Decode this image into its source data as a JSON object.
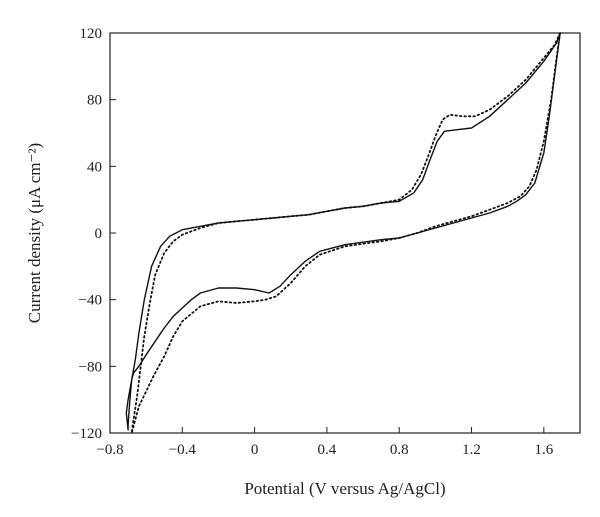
{
  "chart_data": {
    "type": "line",
    "title": "",
    "xlabel": "Potential (V versus Ag/AgCl)",
    "ylabel": "Current density (μA cm⁻²)",
    "xlim": [
      -0.8,
      1.8
    ],
    "ylim": [
      -120,
      120
    ],
    "x_ticks": [
      "−0.8",
      "−0.4",
      "0",
      "0.4",
      "0.8",
      "1.2",
      "1.6"
    ],
    "x_tick_values": [
      -0.8,
      -0.4,
      0,
      0.4,
      0.8,
      1.2,
      1.6
    ],
    "y_ticks": [
      "−120",
      "−80",
      "−40",
      "0",
      "40",
      "80",
      "120"
    ],
    "y_tick_values": [
      -120,
      -80,
      -40,
      0,
      40,
      80,
      120
    ],
    "grid": false,
    "legend": "none",
    "series": [
      {
        "style": "solid",
        "color": "#111111",
        "points": [
          [
            1.69,
            120
          ],
          [
            1.67,
            114
          ],
          [
            1.6,
            103
          ],
          [
            1.5,
            90
          ],
          [
            1.4,
            80
          ],
          [
            1.3,
            70
          ],
          [
            1.2,
            63
          ],
          [
            1.12,
            62
          ],
          [
            1.05,
            61
          ],
          [
            1.01,
            55
          ],
          [
            0.97,
            44
          ],
          [
            0.93,
            32
          ],
          [
            0.88,
            24
          ],
          [
            0.8,
            19
          ],
          [
            0.7,
            18
          ],
          [
            0.6,
            16
          ],
          [
            0.5,
            15
          ],
          [
            0.4,
            13
          ],
          [
            0.3,
            11
          ],
          [
            0.2,
            10
          ],
          [
            0.1,
            9
          ],
          [
            0,
            8
          ],
          [
            -0.1,
            7
          ],
          [
            -0.2,
            6
          ],
          [
            -0.3,
            4
          ],
          [
            -0.4,
            2
          ],
          [
            -0.47,
            -2
          ],
          [
            -0.52,
            -8
          ],
          [
            -0.57,
            -20
          ],
          [
            -0.61,
            -40
          ],
          [
            -0.64,
            -60
          ],
          [
            -0.66,
            -76
          ],
          [
            -0.68,
            -88
          ],
          [
            -0.7,
            -100
          ],
          [
            -0.71,
            -108
          ],
          [
            -0.7,
            -118
          ],
          [
            -0.7,
            -115
          ],
          [
            -0.69,
            -100
          ],
          [
            -0.68,
            -88
          ],
          [
            -0.67,
            -84
          ],
          [
            -0.64,
            -80
          ],
          [
            -0.6,
            -73
          ],
          [
            -0.55,
            -65
          ],
          [
            -0.5,
            -57
          ],
          [
            -0.45,
            -50
          ],
          [
            -0.4,
            -45
          ],
          [
            -0.35,
            -40
          ],
          [
            -0.3,
            -36
          ],
          [
            -0.2,
            -33
          ],
          [
            -0.1,
            -33
          ],
          [
            0,
            -34
          ],
          [
            0.08,
            -36
          ],
          [
            0.14,
            -32
          ],
          [
            0.2,
            -25
          ],
          [
            0.28,
            -17
          ],
          [
            0.36,
            -11
          ],
          [
            0.5,
            -7
          ],
          [
            0.7,
            -4
          ],
          [
            0.8,
            -3
          ],
          [
            0.9,
            0
          ],
          [
            1.0,
            3
          ],
          [
            1.1,
            6
          ],
          [
            1.2,
            9
          ],
          [
            1.3,
            12
          ],
          [
            1.4,
            16
          ],
          [
            1.45,
            19
          ],
          [
            1.5,
            23
          ],
          [
            1.55,
            30
          ],
          [
            1.6,
            48
          ],
          [
            1.63,
            70
          ],
          [
            1.66,
            95
          ],
          [
            1.69,
            120
          ]
        ]
      },
      {
        "style": "dotted",
        "color": "#111111",
        "points": [
          [
            1.69,
            120
          ],
          [
            1.66,
            113
          ],
          [
            1.6,
            105
          ],
          [
            1.5,
            92
          ],
          [
            1.4,
            82
          ],
          [
            1.3,
            74
          ],
          [
            1.22,
            70
          ],
          [
            1.15,
            70
          ],
          [
            1.08,
            71
          ],
          [
            1.04,
            68
          ],
          [
            1.0,
            58
          ],
          [
            0.96,
            46
          ],
          [
            0.92,
            35
          ],
          [
            0.87,
            26
          ],
          [
            0.8,
            20
          ],
          [
            0.7,
            18
          ],
          [
            0.6,
            16
          ],
          [
            0.5,
            15
          ],
          [
            0.4,
            13
          ],
          [
            0.3,
            11
          ],
          [
            0.2,
            10
          ],
          [
            0.1,
            9
          ],
          [
            0,
            8
          ],
          [
            -0.1,
            7
          ],
          [
            -0.2,
            6
          ],
          [
            -0.3,
            3
          ],
          [
            -0.4,
            -1
          ],
          [
            -0.45,
            -5
          ],
          [
            -0.5,
            -12
          ],
          [
            -0.55,
            -25
          ],
          [
            -0.58,
            -42
          ],
          [
            -0.61,
            -62
          ],
          [
            -0.63,
            -80
          ],
          [
            -0.65,
            -98
          ],
          [
            -0.67,
            -112
          ],
          [
            -0.68,
            -120
          ],
          [
            -0.66,
            -112
          ],
          [
            -0.64,
            -104
          ],
          [
            -0.6,
            -95
          ],
          [
            -0.56,
            -86
          ],
          [
            -0.5,
            -74
          ],
          [
            -0.45,
            -62
          ],
          [
            -0.4,
            -53
          ],
          [
            -0.3,
            -44
          ],
          [
            -0.2,
            -41
          ],
          [
            -0.1,
            -42
          ],
          [
            0,
            -41
          ],
          [
            0.06,
            -40
          ],
          [
            0.12,
            -38
          ],
          [
            0.2,
            -30
          ],
          [
            0.28,
            -20
          ],
          [
            0.36,
            -13
          ],
          [
            0.5,
            -8
          ],
          [
            0.7,
            -5
          ],
          [
            0.8,
            -3
          ],
          [
            0.9,
            0
          ],
          [
            1.0,
            4
          ],
          [
            1.1,
            7
          ],
          [
            1.2,
            10
          ],
          [
            1.3,
            14
          ],
          [
            1.4,
            18
          ],
          [
            1.47,
            22
          ],
          [
            1.52,
            28
          ],
          [
            1.56,
            38
          ],
          [
            1.6,
            55
          ],
          [
            1.64,
            80
          ],
          [
            1.67,
            105
          ],
          [
            1.69,
            120
          ]
        ]
      }
    ]
  }
}
